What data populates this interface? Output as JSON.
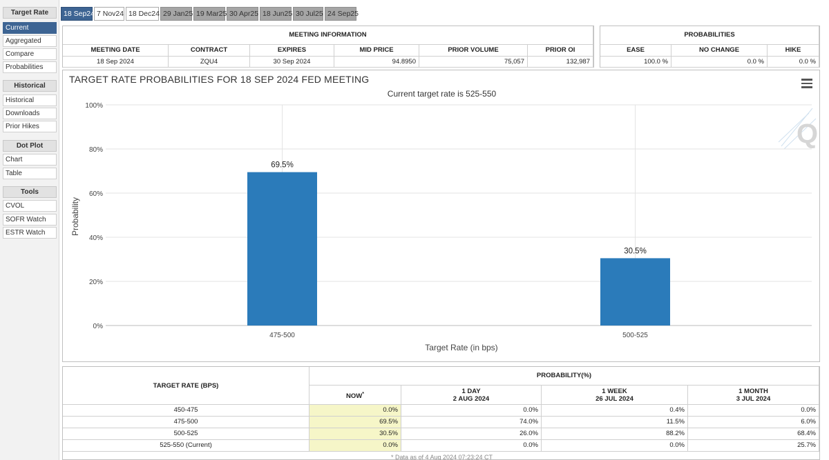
{
  "sidebar": {
    "sections": [
      {
        "title": "Target Rate",
        "items": [
          "Current",
          "Aggregated",
          "Compare",
          "Probabilities"
        ]
      },
      {
        "title": "Historical",
        "items": [
          "Historical",
          "Downloads",
          "Prior Hikes"
        ]
      },
      {
        "title": "Dot Plot",
        "items": [
          "Chart",
          "Table"
        ]
      },
      {
        "title": "Tools",
        "items": [
          "CVOL",
          "SOFR Watch",
          "ESTR Watch"
        ]
      }
    ],
    "active_item": "Current"
  },
  "tabs": [
    "18 Sep24",
    "7 Nov24",
    "18 Dec24",
    "29 Jan25",
    "19 Mar25",
    "30 Apr25",
    "18 Jun25",
    "30 Jul25",
    "24 Sep25"
  ],
  "active_tab": "18 Sep24",
  "meeting_info": {
    "title": "MEETING INFORMATION",
    "headers": [
      "MEETING DATE",
      "CONTRACT",
      "EXPIRES",
      "MID PRICE",
      "PRIOR VOLUME",
      "PRIOR OI"
    ],
    "values": [
      "18 Sep 2024",
      "ZQU4",
      "30 Sep 2024",
      "94.8950",
      "75,057",
      "132,987"
    ]
  },
  "probabilities": {
    "title": "PROBABILITIES",
    "headers": [
      "EASE",
      "NO CHANGE",
      "HIKE"
    ],
    "values": [
      "100.0 %",
      "0.0 %",
      "0.0 %"
    ]
  },
  "chart": {
    "title": "TARGET RATE PROBABILITIES FOR 18 SEP 2024 FED MEETING",
    "subtitle": "Current target rate is 525-550",
    "watermark": "Q"
  },
  "chart_data": {
    "type": "bar",
    "title": "TARGET RATE PROBABILITIES FOR 18 SEP 2024 FED MEETING",
    "subtitle": "Current target rate is 525-550",
    "categories": [
      "475-500",
      "500-525"
    ],
    "values": [
      69.5,
      30.5
    ],
    "data_labels": [
      "69.5%",
      "30.5%"
    ],
    "xlabel": "Target Rate (in bps)",
    "ylabel": "Probability",
    "ylim": [
      0,
      100
    ],
    "yticks": [
      "0%",
      "20%",
      "40%",
      "60%",
      "80%",
      "100%"
    ],
    "grid": true,
    "bar_color": "#2b7bba"
  },
  "prob_table": {
    "rate_header": "TARGET RATE (BPS)",
    "prob_header": "PROBABILITY(%)",
    "columns": [
      {
        "line1": "NOW",
        "line2": "",
        "star": "*"
      },
      {
        "line1": "1 DAY",
        "line2": "2 AUG 2024",
        "star": ""
      },
      {
        "line1": "1 WEEK",
        "line2": "26 JUL 2024",
        "star": ""
      },
      {
        "line1": "1 MONTH",
        "line2": "3 JUL 2024",
        "star": ""
      }
    ],
    "rows": [
      {
        "rate": "450-475",
        "values": [
          "0.0%",
          "0.0%",
          "0.4%",
          "0.0%"
        ]
      },
      {
        "rate": "475-500",
        "values": [
          "69.5%",
          "74.0%",
          "11.5%",
          "6.0%"
        ]
      },
      {
        "rate": "500-525",
        "values": [
          "30.5%",
          "26.0%",
          "88.2%",
          "68.4%"
        ]
      },
      {
        "rate": "525-550 (Current)",
        "values": [
          "0.0%",
          "0.0%",
          "0.0%",
          "25.7%"
        ]
      }
    ],
    "footnote": "* Data as of 4 Aug 2024 07:23:24 CT"
  }
}
